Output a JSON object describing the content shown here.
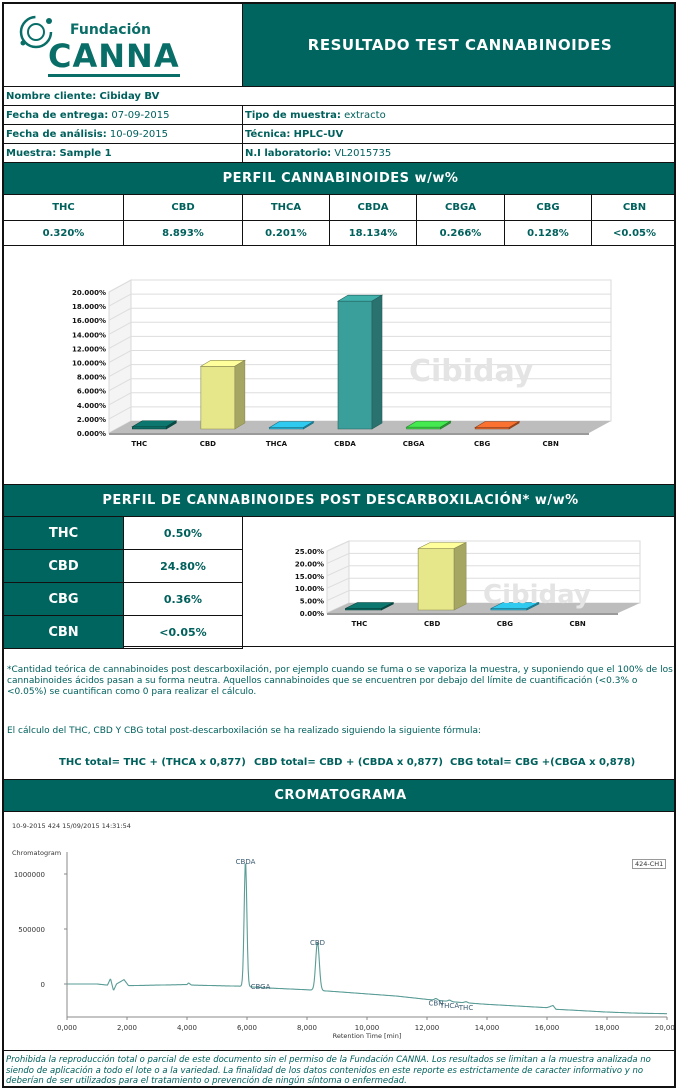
{
  "brand": {
    "small": "Fundación",
    "big": "CANNA"
  },
  "report_title": "RESULTADO TEST CANNABINOIDES",
  "client": {
    "label": "Nombre cliente:",
    "value": "Cibiday BV"
  },
  "delivery_date": {
    "label": "Fecha de entrega:",
    "value": "07-09-2015"
  },
  "sample_type": {
    "label": "Tipo de muestra:",
    "value": "extracto"
  },
  "analysis_date": {
    "label": "Fecha de análisis:",
    "value": "10-09-2015"
  },
  "technique": {
    "label": "Técnica:",
    "value": "HPLC-UV"
  },
  "sample": {
    "label": "Muestra:",
    "value": "Sample 1"
  },
  "lab_number": {
    "label": "N.I laboratorio:",
    "value": "VL2015735"
  },
  "profile": {
    "title": "PERFIL CANNABINOIDES w/w%",
    "headers": [
      "THC",
      "CBD",
      "THCA",
      "CBDA",
      "CBGA",
      "CBG",
      "CBN"
    ],
    "values": [
      "0.320%",
      "8.893%",
      "0.201%",
      "18.134%",
      "0.266%",
      "0.128%",
      "<0.05%"
    ]
  },
  "watermark": "Cibiday",
  "post": {
    "title": "PERFIL DE CANNABINOIDES POST DESCARBOXILACIÓN* w/w%",
    "rows": [
      {
        "name": "THC",
        "value": "0.50%"
      },
      {
        "name": "CBD",
        "value": "24.80%"
      },
      {
        "name": "CBG",
        "value": "0.36%"
      },
      {
        "name": "CBN",
        "value": "<0.05%"
      }
    ]
  },
  "notes": {
    "p1": "*Cantidad teórica de cannabinoides post descarboxilación, por ejemplo cuando se fuma o se vaporiza la muestra, y suponiendo que el 100% de los cannabinoides ácidos pasan a su forma neutra. Aquellos cannabinoides que se encuentren por debajo del límite de cuantificación (<0.3% o <0.05%) se cuantifican como 0 para realizar el cálculo.",
    "p2": "El cálculo del THC, CBD Y CBG total post-descarboxilación se ha realizado siguiendo la siguiente fórmula:",
    "f1": "THC total= THC + (THCA x 0,877)",
    "f2": "CBD total= CBD + (CBDA x 0,877)",
    "f3": "CBG total= CBG +(CBGA x 0,878)"
  },
  "chromatogram": {
    "title": "CROMATOGRAMA",
    "run_info": "10-9-2015 424 15/09/2015 14:31:54",
    "panel_label": "Chromatogram",
    "legend": "424-CH1",
    "x_axis_label": "Retention Time [min]",
    "peak_labels": [
      "CBDA",
      "CBGA",
      "CBD",
      "CBN",
      "THCA",
      "THC"
    ]
  },
  "footer": "Prohibida la reproducción total o parcial de este documento sin el permiso de la Fundación CANNA. Los resultados se limitan a la muestra analizada no siendo de aplicación a todo el lote o a la variedad. La finalidad de los datos contenidos en este reporte es estrictamente de caracter informativo y no deberían de ser utilizados para el tratamiento o prevención de ningún síntoma o enfermedad.",
  "chart_data": [
    {
      "type": "bar",
      "categories": [
        "THC",
        "CBD",
        "THCA",
        "CBDA",
        "CBGA",
        "CBG",
        "CBN"
      ],
      "values": [
        0.32,
        8.893,
        0.201,
        18.134,
        0.266,
        0.128,
        0
      ],
      "ylim": [
        0,
        20
      ],
      "yticks": [
        "0.000%",
        "2.000%",
        "4.000%",
        "6.000%",
        "8.000%",
        "10.000%",
        "12.000%",
        "14.000%",
        "16.000%",
        "18.000%",
        "20.000%"
      ],
      "colors": [
        "#0b6a63",
        "#e6e68a",
        "#29b4d6",
        "#3a9e9a",
        "#3ed147",
        "#e0662b",
        "#9a9a9a"
      ]
    },
    {
      "type": "bar",
      "categories": [
        "THC",
        "CBD",
        "CBG",
        "CBN"
      ],
      "values": [
        0.5,
        24.8,
        0.36,
        0
      ],
      "ylim": [
        0,
        25
      ],
      "yticks": [
        "0.00%",
        "5.00%",
        "10.00%",
        "15.00%",
        "20.00%",
        "25.00%"
      ],
      "colors": [
        "#0b6a63",
        "#e6e68a",
        "#29b4d6",
        "#9a9a9a"
      ]
    },
    {
      "type": "line",
      "xlim": [
        0,
        20
      ],
      "x_ticks": [
        "0,000",
        "2,000",
        "4,000",
        "6,000",
        "8,000",
        "10,000",
        "12,000",
        "14,000",
        "16,000",
        "18,000",
        "20,000"
      ],
      "ylim": [
        -300000,
        1200000
      ],
      "y_ticks": [
        "0",
        "500000",
        "1000000"
      ],
      "peaks": [
        {
          "name": "CBDA",
          "x": 5.95,
          "y": 1120000
        },
        {
          "name": "CBGA",
          "x": 6.45,
          "y": -20000
        },
        {
          "name": "CBD",
          "x": 8.35,
          "y": 380000
        },
        {
          "name": "CBN",
          "x": 12.3,
          "y": -170000
        },
        {
          "name": "THCA",
          "x": 12.75,
          "y": -190000
        },
        {
          "name": "THC",
          "x": 13.3,
          "y": -210000
        }
      ],
      "baseline": [
        [
          0,
          0
        ],
        [
          1.0,
          0
        ],
        [
          1.35,
          -10000
        ],
        [
          1.45,
          50000
        ],
        [
          1.55,
          -60000
        ],
        [
          1.65,
          0
        ],
        [
          1.9,
          40000
        ],
        [
          2.05,
          -15000
        ],
        [
          4.0,
          -5000
        ],
        [
          4.05,
          10000
        ],
        [
          4.15,
          -10000
        ],
        [
          5.8,
          -20000
        ],
        [
          6.6,
          -35000
        ],
        [
          8.2,
          -55000
        ],
        [
          9.0,
          -70000
        ],
        [
          10.0,
          -90000
        ],
        [
          11.0,
          -110000
        ],
        [
          12.0,
          -140000
        ],
        [
          13.0,
          -165000
        ],
        [
          14.0,
          -185000
        ],
        [
          15.0,
          -200000
        ],
        [
          16.0,
          -215000
        ],
        [
          16.2,
          -195000
        ],
        [
          16.3,
          -230000
        ],
        [
          17.0,
          -240000
        ],
        [
          18.0,
          -255000
        ],
        [
          19.0,
          -265000
        ],
        [
          20.0,
          -270000
        ]
      ]
    }
  ]
}
